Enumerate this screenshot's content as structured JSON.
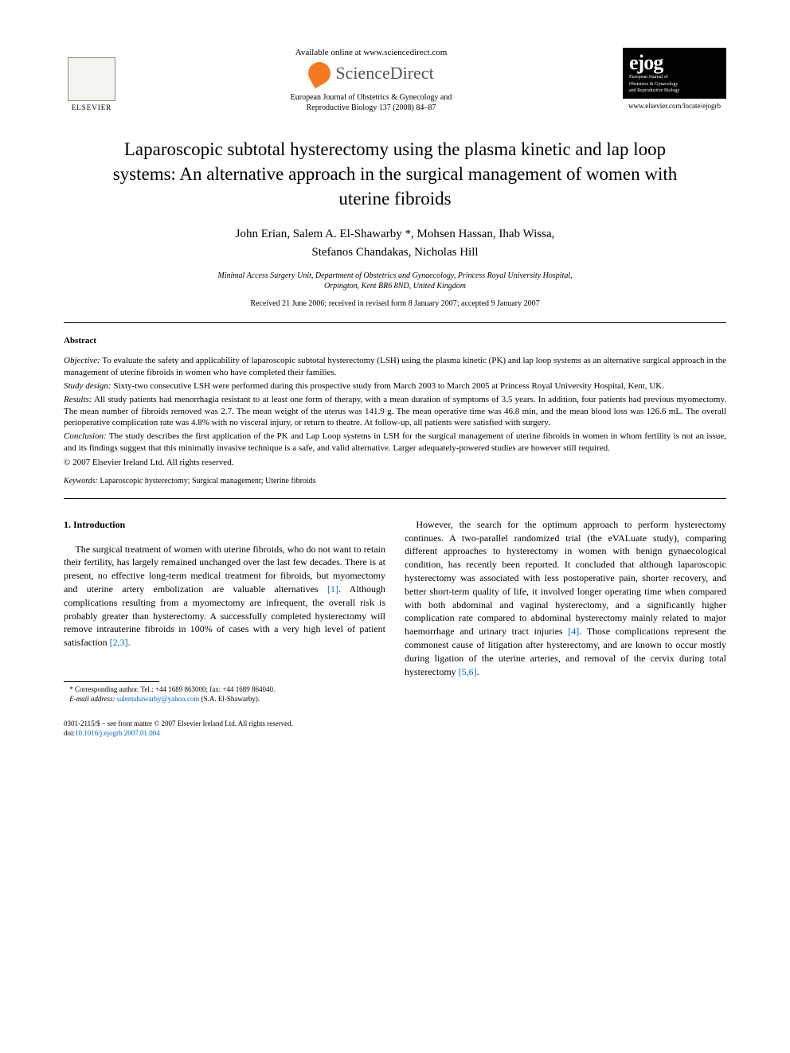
{
  "header": {
    "elsevier": "ELSEVIER",
    "available_online": "Available online at www.sciencedirect.com",
    "sciencedirect": "ScienceDirect",
    "journal_citation_line1": "European Journal of Obstetrics & Gynecology and",
    "journal_citation_line2": "Reproductive Biology 137 (2008) 84–87",
    "ejog_logo_main": "ejog",
    "ejog_logo_sub1": "European Journal of",
    "ejog_logo_sub2": "Obstetrics & Gynecology",
    "ejog_logo_sub3": "and Reproductive Biology",
    "journal_url": "www.elsevier.com/locate/ejogrb"
  },
  "article": {
    "title": "Laparoscopic subtotal hysterectomy using the plasma kinetic and lap loop systems: An alternative approach in the surgical management of women with uterine fibroids",
    "authors_line1": "John Erian, Salem A. El-Shawarby *, Mohsen Hassan, Ihab Wissa,",
    "authors_line2": "Stefanos Chandakas, Nicholas Hill",
    "affiliation_line1": "Minimal Access Surgery Unit, Department of Obstetrics and Gynaecology, Princess Royal University Hospital,",
    "affiliation_line2": "Orpington, Kent BR6 8ND, United Kingdom",
    "dates": "Received 21 June 2006; received in revised form 8 January 2007; accepted 9 January 2007"
  },
  "abstract": {
    "heading": "Abstract",
    "objective_label": "Objective:",
    "objective_text": "To evaluate the safety and applicability of laparoscopic subtotal hysterectomy (LSH) using the plasma kinetic (PK) and lap loop systems as an alternative surgical approach in the management of uterine fibroids in women who have completed their families.",
    "design_label": "Study design:",
    "design_text": "Sixty-two consecutive LSH were performed during this prospective study from March 2003 to March 2005 at Princess Royal University Hospital, Kent, UK.",
    "results_label": "Results:",
    "results_text": "All study patients had menorrhagia resistant to at least one form of therapy, with a mean duration of symptoms of 3.5 years. In addition, four patients had previous myomectomy. The mean number of fibroids removed was 2.7. The mean weight of the uterus was 141.9 g. The mean operative time was 46.8 min, and the mean blood loss was 126.6 mL. The overall perioperative complication rate was 4.8% with no visceral injury, or return to theatre. At follow-up, all patients were satisfied with surgery.",
    "conclusion_label": "Conclusion:",
    "conclusion_text": "The study describes the first application of the PK and Lap Loop systems in LSH for the surgical management of uterine fibroids in women in whom fertility is not an issue, and its findings suggest that this minimally invasive technique is a safe, and valid alternative. Larger adequately-powered studies are however still required.",
    "copyright": "© 2007 Elsevier Ireland Ltd. All rights reserved.",
    "keywords_label": "Keywords:",
    "keywords_text": "Laparoscopic hysterectomy; Surgical management; Uterine fibroids"
  },
  "body": {
    "section1_heading": "1. Introduction",
    "para1_part1": "The surgical treatment of women with uterine fibroids, who do not want to retain their fertility, has largely remained unchanged over the last few decades. There is at present, no effective long-term medical treatment for fibroids, but myomectomy and uterine artery embolization are valuable alternatives ",
    "ref1": "[1]",
    "para1_part2": ". Although complications resulting from a myomectomy are infrequent, the overall risk is probably greater than hysterectomy. A successfully completed hysterectomy will remove intrauterine fibroids in 100% of cases with a very high level of patient satisfaction ",
    "ref23": "[2,3]",
    "para1_part3": ".",
    "para2_part1": "However, the search for the optimum approach to perform hysterectomy continues. A two-parallel randomized trial (the eVALuate study), comparing different approaches to hysterectomy in women with benign gynaecological condition, has recently been reported. It concluded that although laparoscopic hysterectomy was associated with less postoperative pain, shorter recovery, and better short-term quality of life, it involved longer operating time when compared with both abdominal and vaginal hysterectomy, and a significantly higher complication rate compared to abdominal hysterectomy mainly related to major haemorrhage and urinary tract injuries ",
    "ref4": "[4]",
    "para2_part2": ". Those complications represent the commonest cause of litigation after hysterectomy, and are known to occur mostly during ligation of the uterine arteries, and removal of the cervix during total hysterectomy ",
    "ref56": "[5,6]",
    "para2_part3": "."
  },
  "footnote": {
    "corresponding_label": "* Corresponding author. Tel.: +44 1689 863000; fax: +44 1689 864040.",
    "email_label": "E-mail address:",
    "email": "salemshawarby@yahoo.com",
    "email_suffix": "(S.A. El-Shawarby)."
  },
  "footer": {
    "line1": "0301-2115/$ – see front matter © 2007 Elsevier Ireland Ltd. All rights reserved.",
    "doi_label": "doi:",
    "doi": "10.1016/j.ejogrb.2007.01.004"
  },
  "colors": {
    "link": "#0066cc",
    "orange": "#f47920",
    "text": "#000000",
    "bg": "#ffffff"
  }
}
